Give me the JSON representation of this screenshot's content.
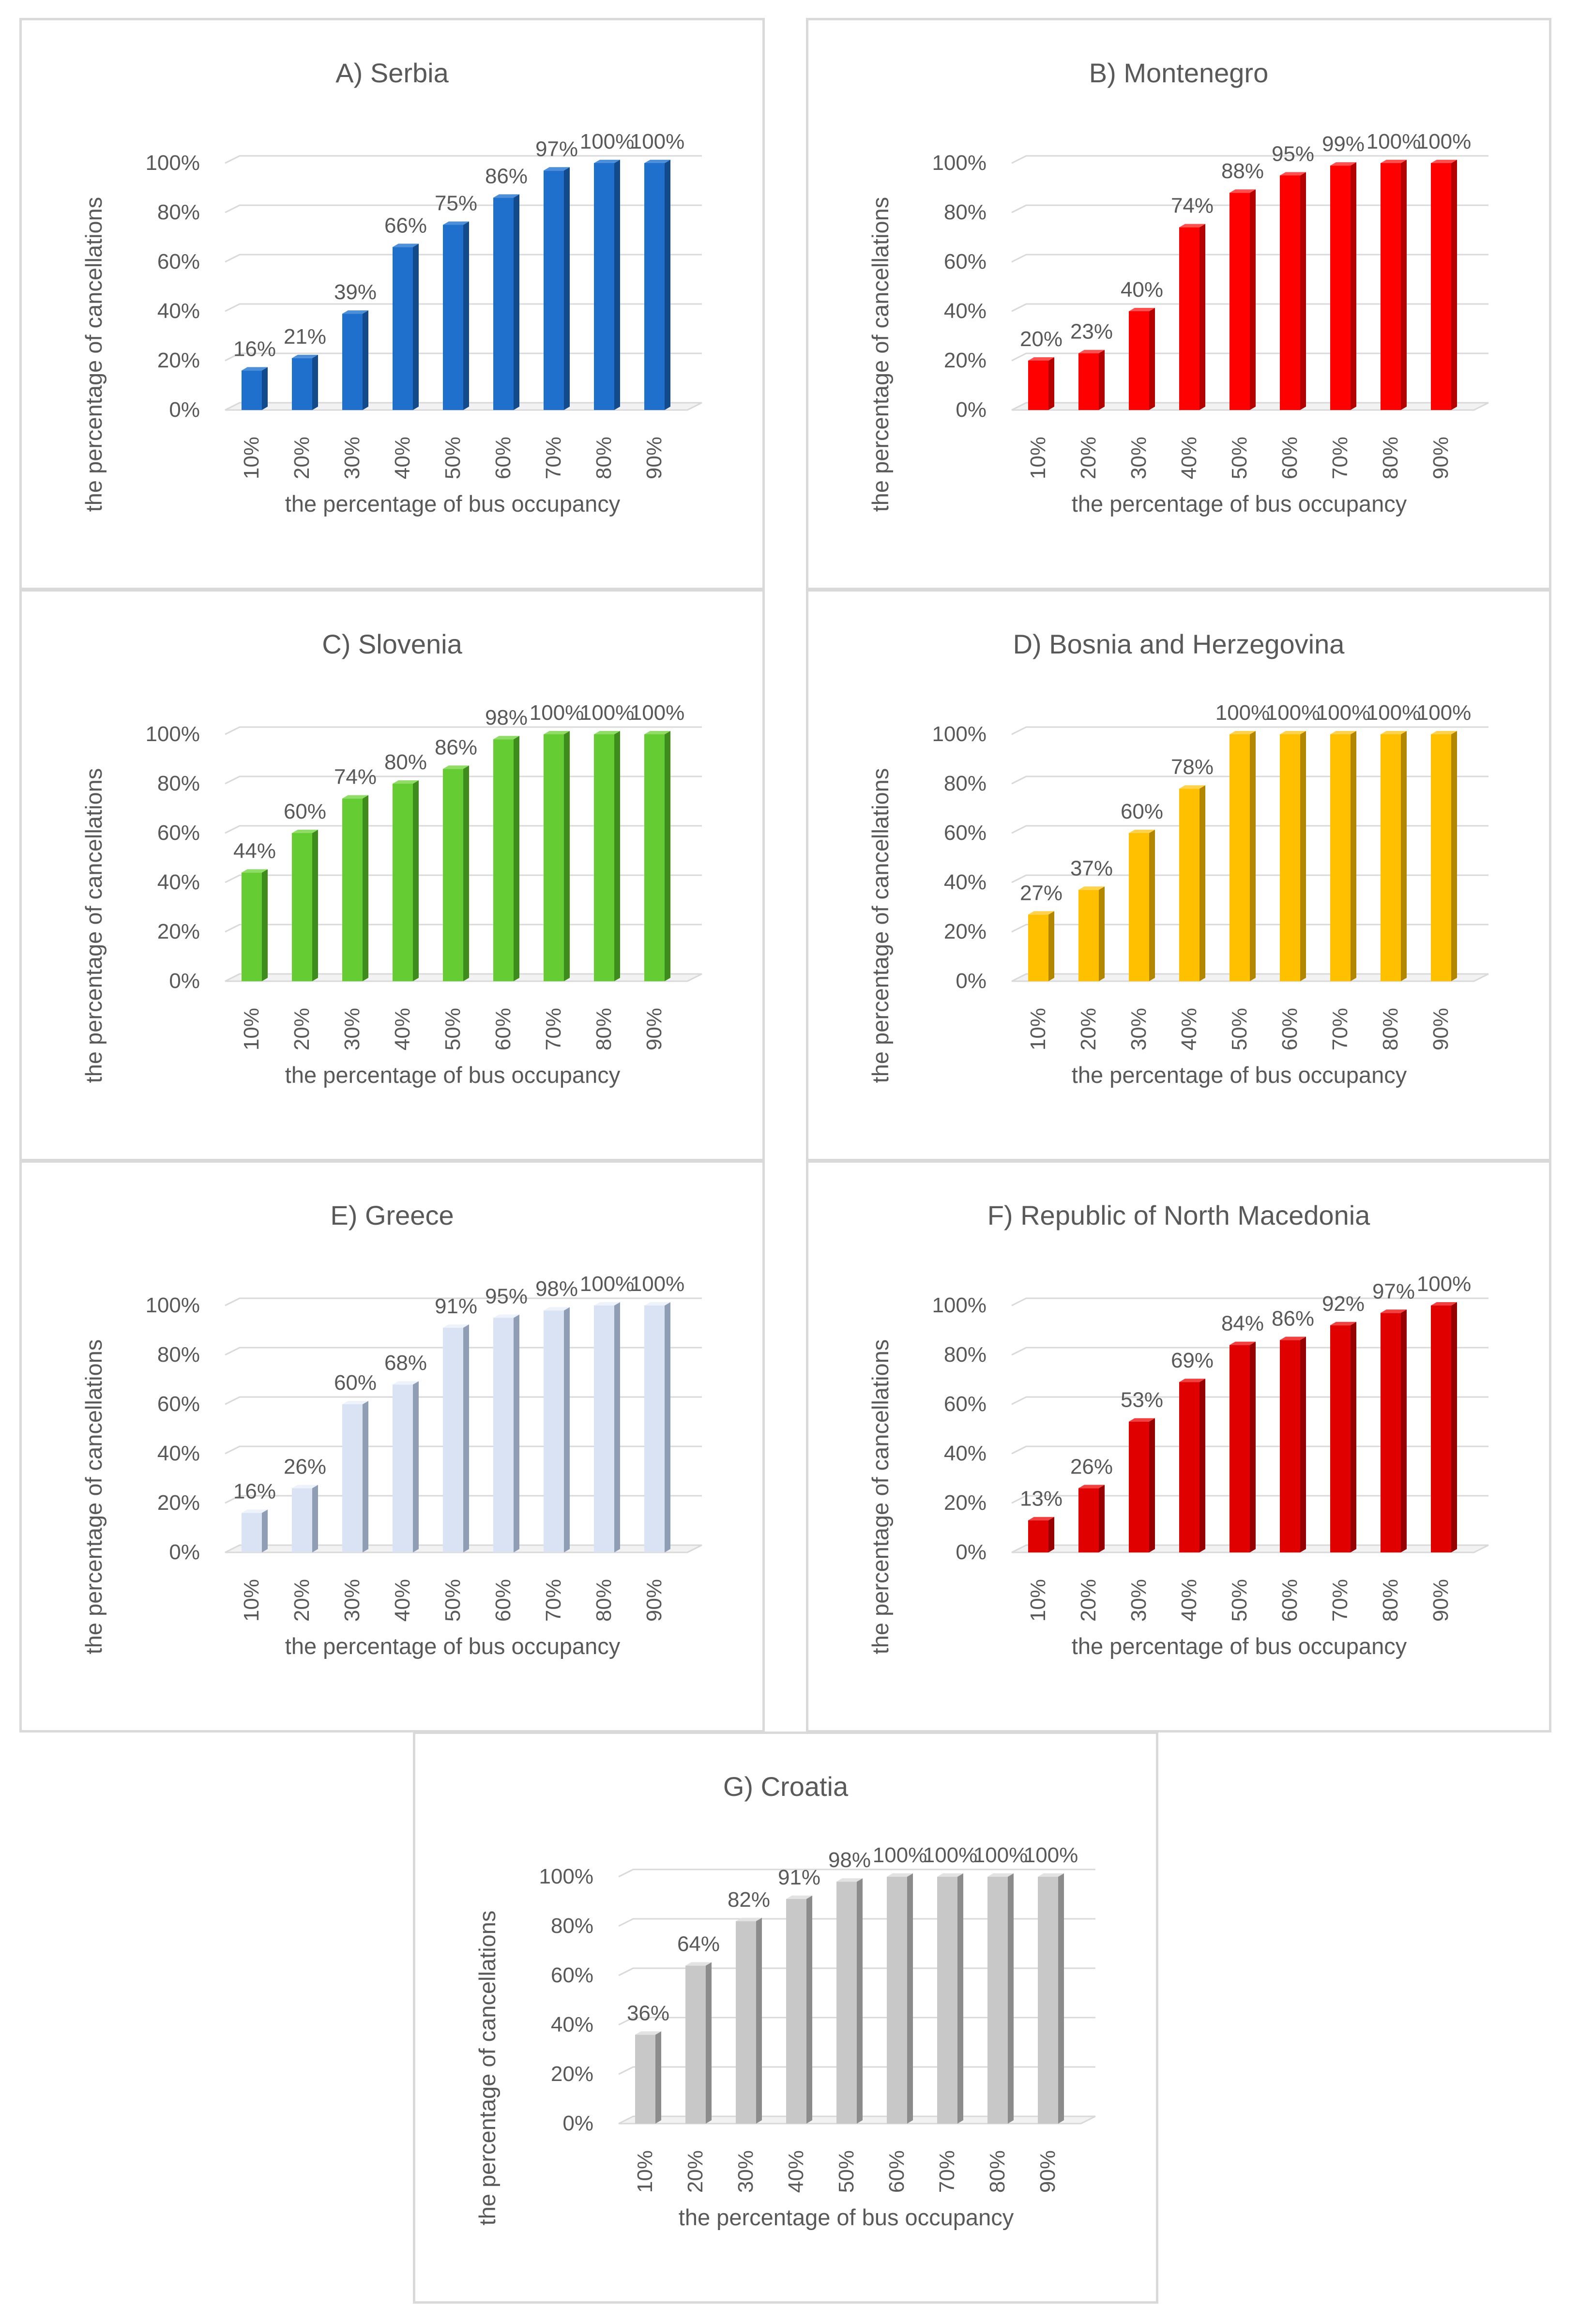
{
  "chart_data": [
    {
      "type": "bar",
      "title": "A) Serbia",
      "xlabel": "the percentage of bus occupancy",
      "ylabel": "the percentage of cancellations",
      "categories": [
        "10%",
        "20%",
        "30%",
        "40%",
        "50%",
        "60%",
        "70%",
        "80%",
        "90%"
      ],
      "values": [
        16,
        21,
        39,
        66,
        75,
        86,
        97,
        100,
        100
      ],
      "labels": [
        "16%",
        "21%",
        "39%",
        "66%",
        "75%",
        "86%",
        "97%",
        "100%",
        "100%"
      ],
      "ylim": [
        0,
        100
      ],
      "yticks": [
        "0%",
        "20%",
        "40%",
        "60%",
        "80%",
        "100%"
      ],
      "colors": {
        "front": "#1f6fcc",
        "side": "#124a8c",
        "top": "#4d90d9"
      }
    },
    {
      "type": "bar",
      "title": "B) Montenegro",
      "xlabel": "the percentage of bus occupancy",
      "ylabel": "the percentage of cancellations",
      "categories": [
        "10%",
        "20%",
        "30%",
        "40%",
        "50%",
        "60%",
        "70%",
        "80%",
        "90%"
      ],
      "values": [
        20,
        23,
        40,
        74,
        88,
        95,
        99,
        100,
        100
      ],
      "labels": [
        "20%",
        "23%",
        "40%",
        "74%",
        "88%",
        "95%",
        "99%",
        "100%",
        "100%"
      ],
      "ylim": [
        0,
        100
      ],
      "yticks": [
        "0%",
        "20%",
        "40%",
        "60%",
        "80%",
        "100%"
      ],
      "colors": {
        "front": "#ff0000",
        "side": "#b50000",
        "top": "#ff5050"
      }
    },
    {
      "type": "bar",
      "title": "C) Slovenia",
      "xlabel": "the percentage of bus occupancy",
      "ylabel": "the percentage of cancellations",
      "categories": [
        "10%",
        "20%",
        "30%",
        "40%",
        "50%",
        "60%",
        "70%",
        "80%",
        "90%"
      ],
      "values": [
        44,
        60,
        74,
        80,
        86,
        98,
        100,
        100,
        100
      ],
      "labels": [
        "44%",
        "60%",
        "74%",
        "80%",
        "86%",
        "98%",
        "100%",
        "100%",
        "100%"
      ],
      "ylim": [
        0,
        100
      ],
      "yticks": [
        "0%",
        "20%",
        "40%",
        "60%",
        "80%",
        "100%"
      ],
      "colors": {
        "front": "#66cc33",
        "side": "#3e8c1c",
        "top": "#8fdd66"
      }
    },
    {
      "type": "bar",
      "title": "D) Bosnia and Herzegovina",
      "xlabel": "the percentage of bus occupancy",
      "ylabel": "the percentage of cancellations",
      "categories": [
        "10%",
        "20%",
        "30%",
        "40%",
        "50%",
        "60%",
        "70%",
        "80%",
        "90%"
      ],
      "values": [
        27,
        37,
        60,
        78,
        100,
        100,
        100,
        100,
        100
      ],
      "labels": [
        "27%",
        "37%",
        "60%",
        "78%",
        "100%",
        "100%",
        "100%",
        "100%",
        "100%"
      ],
      "ylim": [
        0,
        100
      ],
      "yticks": [
        "0%",
        "20%",
        "40%",
        "60%",
        "80%",
        "100%"
      ],
      "colors": {
        "front": "#ffc000",
        "side": "#b38600",
        "top": "#ffd24d"
      }
    },
    {
      "type": "bar",
      "title": "E) Greece",
      "xlabel": "the percentage of bus occupancy",
      "ylabel": "the percentage of cancellations",
      "categories": [
        "10%",
        "20%",
        "30%",
        "40%",
        "50%",
        "60%",
        "70%",
        "80%",
        "90%"
      ],
      "values": [
        16,
        26,
        60,
        68,
        91,
        95,
        98,
        100,
        100
      ],
      "labels": [
        "16%",
        "26%",
        "60%",
        "68%",
        "91%",
        "95%",
        "98%",
        "100%",
        "100%"
      ],
      "ylim": [
        0,
        100
      ],
      "yticks": [
        "0%",
        "20%",
        "40%",
        "60%",
        "80%",
        "100%"
      ],
      "colors": {
        "front": "#dae3f3",
        "side": "#8f9db5",
        "top": "#eef2fa"
      }
    },
    {
      "type": "bar",
      "title": "F) Republic of North Macedonia",
      "xlabel": "the percentage of bus occupancy",
      "ylabel": "the percentage of cancellations",
      "categories": [
        "10%",
        "20%",
        "30%",
        "40%",
        "50%",
        "60%",
        "70%",
        "80%",
        "90%"
      ],
      "values": [
        13,
        26,
        53,
        69,
        84,
        86,
        92,
        97,
        100
      ],
      "labels": [
        "13%",
        "26%",
        "53%",
        "69%",
        "84%",
        "86%",
        "92%",
        "97%",
        "100%"
      ],
      "ylim": [
        0,
        100
      ],
      "yticks": [
        "0%",
        "20%",
        "40%",
        "60%",
        "80%",
        "100%"
      ],
      "colors": {
        "front": "#e00000",
        "side": "#960000",
        "top": "#f04040"
      }
    },
    {
      "type": "bar",
      "title": "G) Croatia",
      "xlabel": "the percentage of bus occupancy",
      "ylabel": "the percentage of cancellations",
      "categories": [
        "10%",
        "20%",
        "30%",
        "40%",
        "50%",
        "60%",
        "70%",
        "80%",
        "90%"
      ],
      "values": [
        36,
        64,
        82,
        91,
        98,
        100,
        100,
        100,
        100
      ],
      "labels": [
        "36%",
        "64%",
        "82%",
        "91%",
        "98%",
        "100%",
        "100%",
        "100%",
        "100%"
      ],
      "ylim": [
        0,
        100
      ],
      "yticks": [
        "0%",
        "20%",
        "40%",
        "60%",
        "80%",
        "100%"
      ],
      "colors": {
        "front": "#c8c8c8",
        "side": "#8c8c8c",
        "top": "#e2e2e2"
      }
    }
  ]
}
